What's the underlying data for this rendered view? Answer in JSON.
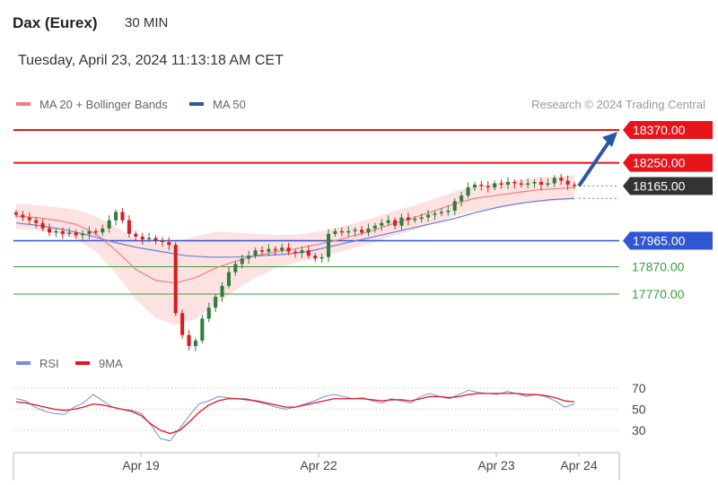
{
  "header": {
    "instrument": "Dax (Eurex)",
    "timeframe": "30 MIN",
    "timestamp": "Tuesday, April 23, 2024 11:13:18 AM CET"
  },
  "legend": {
    "ma20_label": "MA 20 + Bollinger Bands",
    "ma50_label": "MA 50",
    "copyright": "Research © 2024 Trading Central",
    "rsi_label": "RSI",
    "rsi_ma_label": "9MA"
  },
  "colors": {
    "resistance": "#e8141b",
    "support_strong": "#3056d3",
    "support": "#3c9b3c",
    "current": "#333333",
    "ma20": "#f08080",
    "ma50": "#6a7fd8",
    "bollinger": "#fde2e2",
    "up_candle": "#2f7d3a",
    "down_candle": "#d31f1f",
    "arrow": "#2a56a8",
    "rsi": "#6f8fe0",
    "rsi_ma": "#e8141b"
  },
  "chart_data": [
    {
      "type": "candlestick",
      "title": "",
      "x_labels": [
        "Apr 19",
        "Apr 22",
        "Apr 23",
        "Apr 24"
      ],
      "price_range": [
        17600,
        18420
      ],
      "levels": [
        {
          "value": 18370.0,
          "label": "18370.00",
          "kind": "resistance"
        },
        {
          "value": 18250.0,
          "label": "18250.00",
          "kind": "resistance"
        },
        {
          "value": 18165.0,
          "label": "18165.00",
          "kind": "current"
        },
        {
          "value": 17965.0,
          "label": "17965.00",
          "kind": "support-strong"
        },
        {
          "value": 17870.0,
          "label": "17870.00",
          "kind": "support"
        },
        {
          "value": 17770.0,
          "label": "17770.00",
          "kind": "support"
        }
      ],
      "close_series": [
        18060,
        18050,
        18040,
        18030,
        18010,
        17995,
        18000,
        17990,
        17995,
        17985,
        17990,
        18000,
        17995,
        18010,
        18040,
        18070,
        18040,
        17990,
        17980,
        17970,
        17975,
        17965,
        17960,
        17950,
        17700,
        17620,
        17580,
        17600,
        17680,
        17720,
        17760,
        17800,
        17850,
        17880,
        17900,
        17910,
        17930,
        17925,
        17935,
        17930,
        17940,
        17925,
        17920,
        17930,
        17910,
        17900,
        17905,
        17990,
        18000,
        17995,
        18000,
        18005,
        17995,
        18010,
        18020,
        18030,
        18040,
        18020,
        18050,
        18040,
        18045,
        18050,
        18060,
        18065,
        18070,
        18075,
        18110,
        18130,
        18160,
        18170,
        18165,
        18160,
        18175,
        18170,
        18180,
        18175,
        18170,
        18175,
        18180,
        18170,
        18175,
        18195,
        18185,
        18170,
        18165
      ],
      "ma20_series": [
        18055,
        18050,
        18040,
        18025,
        17990,
        17930,
        17860,
        17820,
        17810,
        17830,
        17865,
        17890,
        17910,
        17925,
        17935,
        17950,
        17965,
        17985,
        18005,
        18030,
        18050,
        18075,
        18100,
        18120,
        18130,
        18140,
        18150,
        18155,
        18160
      ],
      "ma50_series": [
        18030,
        18020,
        18005,
        17985,
        17960,
        17940,
        17925,
        17910,
        17905,
        17905,
        17910,
        17915,
        17925,
        17945,
        17965,
        17985,
        18005,
        18025,
        18045,
        18070,
        18090,
        18105,
        18115,
        18120
      ],
      "forecast_arrow": {
        "from": 18165,
        "to": 18370
      }
    },
    {
      "type": "line",
      "title": "",
      "series": [
        {
          "name": "RSI",
          "values": [
            60,
            58,
            52,
            48,
            46,
            45,
            52,
            56,
            64,
            58,
            52,
            50,
            49,
            46,
            35,
            22,
            20,
            32,
            44,
            55,
            58,
            62,
            61,
            60,
            60,
            57,
            55,
            52,
            50,
            52,
            55,
            58,
            62,
            64,
            62,
            60,
            61,
            58,
            56,
            60,
            58,
            56,
            62,
            65,
            62,
            60,
            64,
            68,
            66,
            65,
            64,
            67,
            65,
            62,
            64,
            62,
            58,
            52,
            55
          ]
        },
        {
          "name": "9MA",
          "values": [
            57,
            56,
            54,
            52,
            50,
            49,
            50,
            52,
            55,
            54,
            52,
            50,
            48,
            44,
            36,
            30,
            27,
            30,
            38,
            47,
            54,
            58,
            60,
            60,
            59,
            58,
            56,
            54,
            52,
            52,
            54,
            56,
            58,
            60,
            60,
            60,
            60,
            59,
            58,
            59,
            59,
            58,
            60,
            62,
            62,
            61,
            62,
            64,
            65,
            65,
            65,
            65,
            65,
            64,
            64,
            63,
            61,
            58,
            57
          ]
        }
      ],
      "y_ticks": [
        30,
        50,
        70
      ],
      "ylim": [
        15,
        80
      ]
    }
  ]
}
